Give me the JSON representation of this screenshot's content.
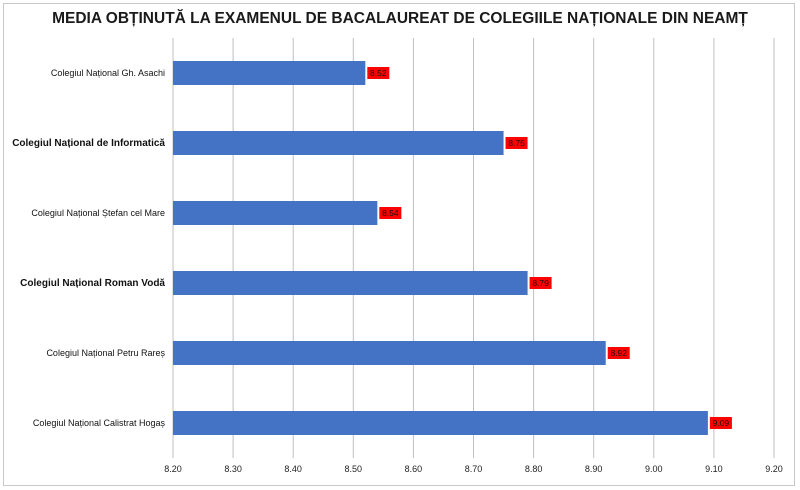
{
  "chart_data": {
    "type": "bar",
    "orientation": "horizontal",
    "title": "MEDIA OBȚINUTĂ LA EXAMENUL DE BACALAUREAT DE COLEGIILE NAȚIONALE DIN NEAMȚ",
    "categories": [
      "Colegiul Național Gh. Asachi",
      "Colegiul Național de Informatică",
      "Colegiul Național Ștefan cel Mare",
      "Colegiul Național Roman Vodă",
      "Colegiul Național Petru Rareș",
      "Colegiul Național Calistrat Hogaș"
    ],
    "values": [
      8.52,
      8.75,
      8.54,
      8.79,
      8.92,
      9.09
    ],
    "data_labels": [
      "8.52",
      "8.75",
      "8.54",
      "8.79",
      "8.92",
      "9.09"
    ],
    "xlim": [
      8.2,
      9.2
    ],
    "x_ticks": [
      "8.20",
      "8.30",
      "8.40",
      "8.50",
      "8.60",
      "8.70",
      "8.80",
      "8.90",
      "9.00",
      "9.10",
      "9.20"
    ],
    "grid": true,
    "legend": "none",
    "colors": {
      "bar": "#4472c4",
      "data_label_bg": "#ff0000",
      "gridline": "#bfbfbf"
    }
  }
}
